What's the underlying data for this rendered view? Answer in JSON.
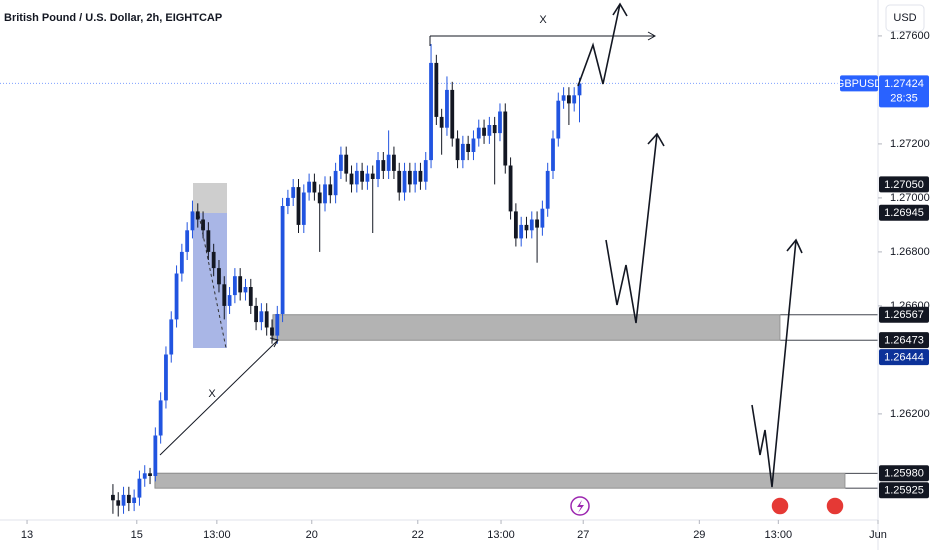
{
  "chart_data": {
    "type": "candlestick",
    "title": "British Pound / U.S. Dollar, 2h, EIGHTCAP",
    "currency": "USD",
    "symbol": "GBPUSD",
    "countdown": "28:35",
    "annotations": [
      "X",
      "X"
    ],
    "up_color": "#2154e0",
    "down_color": "#131722",
    "xlim": [
      -21.3,
      144.3
    ],
    "ylim": [
      1.25807,
      1.27733
    ],
    "yticks": [
      {
        "value": 1.276,
        "label": "1.27600"
      },
      {
        "value": 1.272,
        "label": "1.27200"
      },
      {
        "value": 1.27,
        "label": "1.27000"
      },
      {
        "value": 1.268,
        "label": "1.26800"
      },
      {
        "value": 1.266,
        "label": "1.26600"
      },
      {
        "value": 1.262,
        "label": "1.26200"
      }
    ],
    "xticks": [
      {
        "value": -16.2,
        "label": "13"
      },
      {
        "value": 4.5,
        "label": "15"
      },
      {
        "value": 19.6,
        "label": "13:00"
      },
      {
        "value": 37.5,
        "label": "20"
      },
      {
        "value": 57.5,
        "label": "22"
      },
      {
        "value": 73.2,
        "label": "13:00"
      },
      {
        "value": 88.7,
        "label": "27"
      },
      {
        "value": 110.6,
        "label": "29"
      },
      {
        "value": 125.5,
        "label": "13:00"
      },
      {
        "value": 144.3,
        "label": "Jun"
      }
    ],
    "current_price": {
      "value": 1.27424,
      "label": "1.27424"
    },
    "price_labels": [
      {
        "value": 1.2705,
        "label": "1.27050"
      },
      {
        "value": 1.26945,
        "label": "1.26945"
      },
      {
        "value": 1.26567,
        "label": "1.26567"
      },
      {
        "value": 1.26473,
        "label": "1.26473"
      },
      {
        "value": 1.26444,
        "label": "1.26444"
      },
      {
        "value": 1.2598,
        "label": "1.25980"
      },
      {
        "value": 1.25925,
        "label": "1.25925"
      }
    ],
    "candles": [
      [
        1.259,
        1.2594,
        1.2583,
        1.2588
      ],
      [
        1.2588,
        1.2591,
        1.2582,
        1.2586
      ],
      [
        1.2586,
        1.2593,
        1.2583,
        1.259
      ],
      [
        1.259,
        1.2593,
        1.2584,
        1.2587
      ],
      [
        1.2587,
        1.2592,
        1.2584,
        1.2589
      ],
      [
        1.2589,
        1.2599,
        1.2586,
        1.2596
      ],
      [
        1.2596,
        1.2601,
        1.2593,
        1.2598
      ],
      [
        1.2598,
        1.26,
        1.2594,
        1.2597
      ],
      [
        1.2597,
        1.2615,
        1.2595,
        1.2612
      ],
      [
        1.2612,
        1.2628,
        1.2609,
        1.2625
      ],
      [
        1.2625,
        1.2645,
        1.2622,
        1.2642
      ],
      [
        1.2642,
        1.2658,
        1.2639,
        1.2655
      ],
      [
        1.2655,
        1.2675,
        1.2652,
        1.2672
      ],
      [
        1.2672,
        1.2683,
        1.2669,
        1.268
      ],
      [
        1.268,
        1.2691,
        1.2677,
        1.2688
      ],
      [
        1.2688,
        1.2699,
        1.2685,
        1.2695
      ],
      [
        1.2695,
        1.2698,
        1.2689,
        1.2692
      ],
      [
        1.2692,
        1.2695,
        1.2685,
        1.2688
      ],
      [
        1.2688,
        1.2691,
        1.2677,
        1.268
      ],
      [
        1.268,
        1.2683,
        1.2671,
        1.2674
      ],
      [
        1.2674,
        1.2677,
        1.2665,
        1.2668
      ],
      [
        1.2668,
        1.2671,
        1.2655,
        1.266
      ],
      [
        1.266,
        1.2667,
        1.2657,
        1.2664
      ],
      [
        1.2664,
        1.2674,
        1.2661,
        1.2671
      ],
      [
        1.2671,
        1.2674,
        1.2662,
        1.2665
      ],
      [
        1.2665,
        1.267,
        1.2662,
        1.2667
      ],
      [
        1.2667,
        1.267,
        1.2657,
        1.266
      ],
      [
        1.266,
        1.2663,
        1.2651,
        1.2654
      ],
      [
        1.2654,
        1.2661,
        1.2651,
        1.2658
      ],
      [
        1.2658,
        1.2661,
        1.2649,
        1.2652
      ],
      [
        1.2652,
        1.2655,
        1.2646,
        1.2649
      ],
      [
        1.2649,
        1.266,
        1.2646,
        1.2657
      ],
      [
        1.2657,
        1.27,
        1.2654,
        1.2697
      ],
      [
        1.2697,
        1.2703,
        1.2694,
        1.27
      ],
      [
        1.27,
        1.2707,
        1.2697,
        1.2704
      ],
      [
        1.2704,
        1.2707,
        1.2687,
        1.269
      ],
      [
        1.269,
        1.2705,
        1.2687,
        1.2702
      ],
      [
        1.2702,
        1.2709,
        1.2699,
        1.2706
      ],
      [
        1.2706,
        1.2709,
        1.2699,
        1.2702
      ],
      [
        1.2702,
        1.2705,
        1.268,
        1.2698
      ],
      [
        1.2698,
        1.2708,
        1.2695,
        1.2705
      ],
      [
        1.2705,
        1.2708,
        1.2698,
        1.2701
      ],
      [
        1.2701,
        1.2713,
        1.2698,
        1.271
      ],
      [
        1.271,
        1.2719,
        1.2707,
        1.2716
      ],
      [
        1.2716,
        1.2719,
        1.2706,
        1.2709
      ],
      [
        1.2709,
        1.2712,
        1.2702,
        1.2705
      ],
      [
        1.2705,
        1.2713,
        1.2702,
        1.271
      ],
      [
        1.271,
        1.2713,
        1.2703,
        1.2706
      ],
      [
        1.2706,
        1.2712,
        1.2703,
        1.2709
      ],
      [
        1.2709,
        1.2712,
        1.2687,
        1.2707
      ],
      [
        1.2707,
        1.2717,
        1.2704,
        1.2714
      ],
      [
        1.2714,
        1.2717,
        1.2707,
        1.271
      ],
      [
        1.271,
        1.2725,
        1.2707,
        1.2716
      ],
      [
        1.2716,
        1.2719,
        1.2707,
        1.271
      ],
      [
        1.271,
        1.2713,
        1.2699,
        1.2702
      ],
      [
        1.2702,
        1.2713,
        1.2699,
        1.271
      ],
      [
        1.271,
        1.2713,
        1.2702,
        1.2705
      ],
      [
        1.2705,
        1.2713,
        1.2702,
        1.271
      ],
      [
        1.271,
        1.2713,
        1.2703,
        1.2706
      ],
      [
        1.2706,
        1.2717,
        1.2703,
        1.2714
      ],
      [
        1.2714,
        1.2757,
        1.2711,
        1.275
      ],
      [
        1.275,
        1.2753,
        1.2727,
        1.273
      ],
      [
        1.273,
        1.2733,
        1.2716,
        1.2726
      ],
      [
        1.2726,
        1.2745,
        1.2723,
        1.274
      ],
      [
        1.274,
        1.2743,
        1.2719,
        1.2722
      ],
      [
        1.2722,
        1.2725,
        1.2711,
        1.2714
      ],
      [
        1.2714,
        1.2723,
        1.2711,
        1.272
      ],
      [
        1.272,
        1.2723,
        1.2714,
        1.2717
      ],
      [
        1.2717,
        1.2725,
        1.2714,
        1.2722
      ],
      [
        1.2722,
        1.2729,
        1.2719,
        1.2726
      ],
      [
        1.2726,
        1.2729,
        1.272,
        1.2723
      ],
      [
        1.2723,
        1.273,
        1.272,
        1.2727
      ],
      [
        1.2727,
        1.273,
        1.2705,
        1.2724
      ],
      [
        1.2724,
        1.2735,
        1.2721,
        1.2732
      ],
      [
        1.2732,
        1.2735,
        1.2709,
        1.2712
      ],
      [
        1.2712,
        1.2715,
        1.2692,
        1.2695
      ],
      [
        1.2695,
        1.2698,
        1.2682,
        1.2685
      ],
      [
        1.2685,
        1.2693,
        1.2682,
        1.269
      ],
      [
        1.269,
        1.2693,
        1.2685,
        1.2688
      ],
      [
        1.2688,
        1.2695,
        1.2685,
        1.2692
      ],
      [
        1.2692,
        1.2695,
        1.2676,
        1.2689
      ],
      [
        1.2689,
        1.2699,
        1.2686,
        1.2696
      ],
      [
        1.2696,
        1.2713,
        1.2693,
        1.271
      ],
      [
        1.271,
        1.2725,
        1.2707,
        1.2722
      ],
      [
        1.2722,
        1.2739,
        1.2719,
        1.2736
      ],
      [
        1.2736,
        1.2741,
        1.2733,
        1.2738
      ],
      [
        1.2738,
        1.2741,
        1.2727,
        1.2735
      ],
      [
        1.2735,
        1.2741,
        1.2732,
        1.2738
      ],
      [
        1.2738,
        1.27445,
        1.2728,
        1.27424
      ]
    ]
  }
}
